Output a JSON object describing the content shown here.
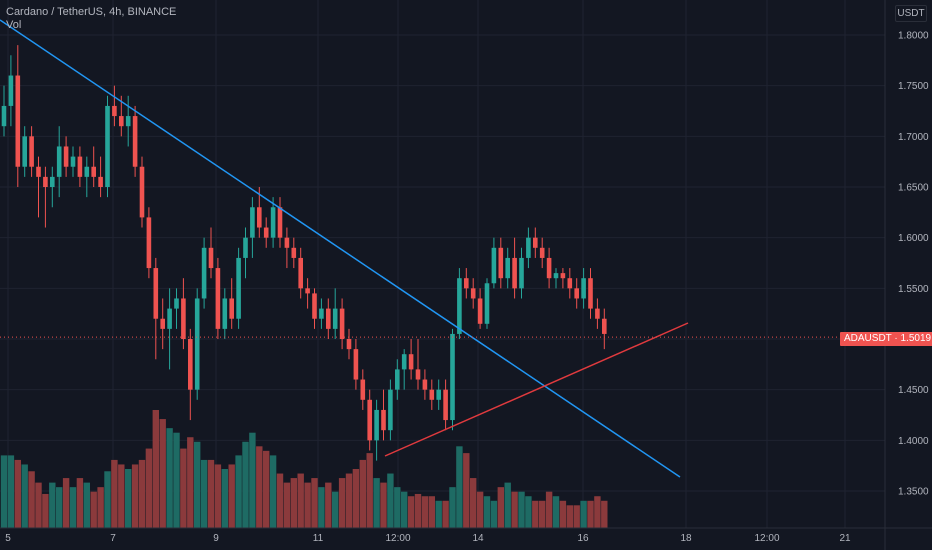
{
  "header": {
    "symbol_line": "Cardano / TetherUS, 4h, BINANCE",
    "indicator": "Vol"
  },
  "currency": "USDT",
  "price_badge": {
    "symbol": "ADAUSDT",
    "price": "1.5019"
  },
  "colors": {
    "bg": "#131722",
    "grid": "#1f2331",
    "up": "#26a69a",
    "down": "#ef5350",
    "vol_up": "#1e6b64",
    "vol_down": "#8b3a3c",
    "trend_down": "#2196f3",
    "trend_up": "#e03a3e",
    "badge": "#ef5350"
  },
  "chart_data": {
    "type": "candlestick",
    "y_ticks": [
      "1.8000",
      "1.7500",
      "1.7000",
      "1.6500",
      "1.6000",
      "1.5500",
      "1.5000",
      "1.4500",
      "1.4000",
      "1.3500"
    ],
    "ylim": [
      1.33,
      1.82
    ],
    "x_ticks": [
      "5",
      "7",
      "9",
      "11",
      "12:00",
      "14",
      "16",
      "18",
      "12:00",
      "21"
    ],
    "last_price": 1.5019,
    "candles": [
      [
        1.71,
        1.75,
        1.7,
        1.73
      ],
      [
        1.73,
        1.78,
        1.71,
        1.76
      ],
      [
        1.76,
        1.79,
        1.65,
        1.67
      ],
      [
        1.67,
        1.71,
        1.66,
        1.7
      ],
      [
        1.7,
        1.71,
        1.66,
        1.67
      ],
      [
        1.67,
        1.68,
        1.62,
        1.66
      ],
      [
        1.66,
        1.67,
        1.61,
        1.65
      ],
      [
        1.65,
        1.67,
        1.63,
        1.66
      ],
      [
        1.66,
        1.71,
        1.64,
        1.69
      ],
      [
        1.69,
        1.7,
        1.66,
        1.67
      ],
      [
        1.67,
        1.69,
        1.66,
        1.68
      ],
      [
        1.68,
        1.69,
        1.65,
        1.66
      ],
      [
        1.66,
        1.68,
        1.64,
        1.67
      ],
      [
        1.67,
        1.69,
        1.65,
        1.66
      ],
      [
        1.66,
        1.68,
        1.64,
        1.65
      ],
      [
        1.65,
        1.74,
        1.64,
        1.73
      ],
      [
        1.73,
        1.75,
        1.71,
        1.72
      ],
      [
        1.72,
        1.74,
        1.7,
        1.71
      ],
      [
        1.71,
        1.74,
        1.69,
        1.72
      ],
      [
        1.72,
        1.73,
        1.66,
        1.67
      ],
      [
        1.67,
        1.68,
        1.61,
        1.62
      ],
      [
        1.62,
        1.63,
        1.56,
        1.57
      ],
      [
        1.57,
        1.58,
        1.48,
        1.52
      ],
      [
        1.52,
        1.54,
        1.49,
        1.51
      ],
      [
        1.51,
        1.55,
        1.47,
        1.53
      ],
      [
        1.53,
        1.55,
        1.51,
        1.54
      ],
      [
        1.54,
        1.56,
        1.49,
        1.5
      ],
      [
        1.5,
        1.51,
        1.42,
        1.45
      ],
      [
        1.45,
        1.55,
        1.44,
        1.54
      ],
      [
        1.54,
        1.6,
        1.53,
        1.59
      ],
      [
        1.59,
        1.61,
        1.56,
        1.57
      ],
      [
        1.57,
        1.58,
        1.5,
        1.51
      ],
      [
        1.51,
        1.55,
        1.5,
        1.54
      ],
      [
        1.54,
        1.56,
        1.51,
        1.52
      ],
      [
        1.52,
        1.59,
        1.51,
        1.58
      ],
      [
        1.58,
        1.61,
        1.56,
        1.6
      ],
      [
        1.6,
        1.64,
        1.58,
        1.63
      ],
      [
        1.63,
        1.65,
        1.6,
        1.61
      ],
      [
        1.61,
        1.62,
        1.59,
        1.6
      ],
      [
        1.6,
        1.64,
        1.59,
        1.63
      ],
      [
        1.63,
        1.64,
        1.59,
        1.6
      ],
      [
        1.6,
        1.61,
        1.57,
        1.59
      ],
      [
        1.59,
        1.6,
        1.57,
        1.58
      ],
      [
        1.58,
        1.59,
        1.54,
        1.55
      ],
      [
        1.55,
        1.56,
        1.53,
        1.545
      ],
      [
        1.545,
        1.55,
        1.51,
        1.52
      ],
      [
        1.52,
        1.54,
        1.51,
        1.53
      ],
      [
        1.53,
        1.54,
        1.5,
        1.51
      ],
      [
        1.51,
        1.55,
        1.5,
        1.53
      ],
      [
        1.53,
        1.54,
        1.49,
        1.5
      ],
      [
        1.5,
        1.51,
        1.48,
        1.49
      ],
      [
        1.49,
        1.5,
        1.45,
        1.46
      ],
      [
        1.46,
        1.47,
        1.43,
        1.44
      ],
      [
        1.44,
        1.45,
        1.39,
        1.4
      ],
      [
        1.4,
        1.44,
        1.38,
        1.43
      ],
      [
        1.43,
        1.45,
        1.4,
        1.41
      ],
      [
        1.41,
        1.46,
        1.4,
        1.45
      ],
      [
        1.45,
        1.48,
        1.44,
        1.47
      ],
      [
        1.47,
        1.49,
        1.45,
        1.485
      ],
      [
        1.485,
        1.5,
        1.46,
        1.47
      ],
      [
        1.47,
        1.5,
        1.45,
        1.46
      ],
      [
        1.46,
        1.47,
        1.44,
        1.45
      ],
      [
        1.45,
        1.46,
        1.43,
        1.44
      ],
      [
        1.44,
        1.46,
        1.43,
        1.45
      ],
      [
        1.45,
        1.46,
        1.41,
        1.42
      ],
      [
        1.42,
        1.51,
        1.41,
        1.505
      ],
      [
        1.505,
        1.57,
        1.5,
        1.56
      ],
      [
        1.56,
        1.57,
        1.54,
        1.55
      ],
      [
        1.55,
        1.56,
        1.53,
        1.54
      ],
      [
        1.54,
        1.55,
        1.51,
        1.515
      ],
      [
        1.515,
        1.56,
        1.51,
        1.555
      ],
      [
        1.555,
        1.6,
        1.55,
        1.59
      ],
      [
        1.59,
        1.6,
        1.55,
        1.56
      ],
      [
        1.56,
        1.59,
        1.55,
        1.58
      ],
      [
        1.58,
        1.6,
        1.54,
        1.55
      ],
      [
        1.55,
        1.59,
        1.54,
        1.58
      ],
      [
        1.58,
        1.61,
        1.57,
        1.6
      ],
      [
        1.6,
        1.61,
        1.58,
        1.59
      ],
      [
        1.59,
        1.6,
        1.57,
        1.58
      ],
      [
        1.58,
        1.59,
        1.55,
        1.56
      ],
      [
        1.56,
        1.57,
        1.55,
        1.565
      ],
      [
        1.565,
        1.57,
        1.55,
        1.56
      ],
      [
        1.56,
        1.57,
        1.54,
        1.55
      ],
      [
        1.55,
        1.56,
        1.53,
        1.54
      ],
      [
        1.54,
        1.57,
        1.53,
        1.56
      ],
      [
        1.56,
        1.57,
        1.52,
        1.53
      ],
      [
        1.53,
        1.54,
        1.51,
        1.52
      ],
      [
        1.52,
        1.53,
        1.49,
        1.505
      ]
    ],
    "volumes": [
      32,
      32,
      30,
      28,
      25,
      20,
      15,
      20,
      18,
      22,
      18,
      22,
      20,
      16,
      18,
      25,
      30,
      28,
      26,
      28,
      30,
      35,
      52,
      48,
      44,
      42,
      35,
      40,
      38,
      30,
      30,
      28,
      26,
      28,
      32,
      38,
      42,
      36,
      34,
      32,
      24,
      20,
      22,
      24,
      20,
      22,
      18,
      20,
      16,
      22,
      24,
      26,
      30,
      33,
      22,
      20,
      24,
      18,
      16,
      14,
      15,
      14,
      14,
      12,
      12,
      18,
      36,
      33,
      22,
      16,
      14,
      12,
      18,
      20,
      16,
      16,
      14,
      12,
      12,
      16,
      14,
      12,
      10,
      10,
      12,
      12,
      14,
      12
    ]
  }
}
